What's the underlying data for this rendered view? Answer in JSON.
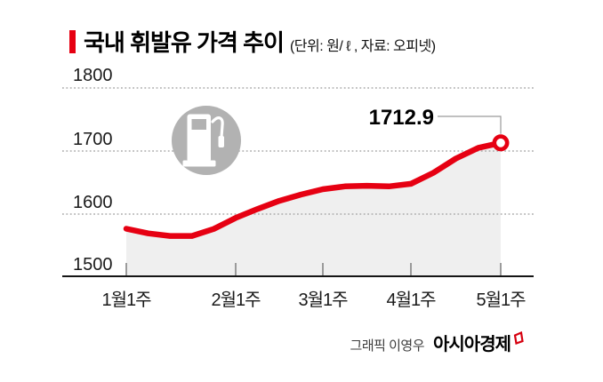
{
  "header": {
    "title": "국내 휘발유 가격 추이",
    "subtitle": "(단위: 원/ ℓ , 자료: 오피넷)"
  },
  "colors": {
    "accent_red": "#e60012",
    "area_fill": "#efefef",
    "grid": "#ababab",
    "axis": "#151515",
    "tick": "#7d7d7d",
    "callout": "#9a9a9a",
    "icon_gray": "#b2b2b2"
  },
  "chart_data": {
    "type": "area",
    "title": "국내 휘발유 가격 추이",
    "unit_label": "원/ℓ",
    "source_label": "오피넷",
    "xlabel": "",
    "ylabel": "",
    "ylim": [
      1500,
      1800
    ],
    "y_ticks": [
      1500,
      1600,
      1700,
      1800
    ],
    "grid": "dotted-horizontal",
    "legend": "none",
    "x_tick_labels": [
      "1월1주",
      "2월1주",
      "3월1주",
      "4월1주",
      "5월1주"
    ],
    "weeks_per_month": [
      5,
      4,
      4,
      4
    ],
    "points": [
      {
        "label": "1월1주",
        "value": 1576.7
      },
      {
        "label": "1월2주",
        "value": 1569.5
      },
      {
        "label": "1월3주",
        "value": 1565.3
      },
      {
        "label": "1월4주",
        "value": 1565.3
      },
      {
        "label": "1월5주",
        "value": 1576.5
      },
      {
        "label": "2월1주",
        "value": 1594.0
      },
      {
        "label": "2월2주",
        "value": 1608.0
      },
      {
        "label": "2월3주",
        "value": 1621.0
      },
      {
        "label": "2월4주",
        "value": 1631.0
      },
      {
        "label": "3월1주",
        "value": 1639.5
      },
      {
        "label": "3월2주",
        "value": 1644.0
      },
      {
        "label": "3월3주",
        "value": 1645.0
      },
      {
        "label": "3월4주",
        "value": 1644.0
      },
      {
        "label": "4월1주",
        "value": 1648.0
      },
      {
        "label": "4월2주",
        "value": 1665.5
      },
      {
        "label": "4월3주",
        "value": 1688.0
      },
      {
        "label": "4월4주",
        "value": 1705.0
      },
      {
        "label": "5월1주",
        "value": 1712.9
      }
    ],
    "end_label": "1712.9"
  },
  "footer": {
    "credit": "그래픽 이영우",
    "brand": "아시아경제"
  }
}
